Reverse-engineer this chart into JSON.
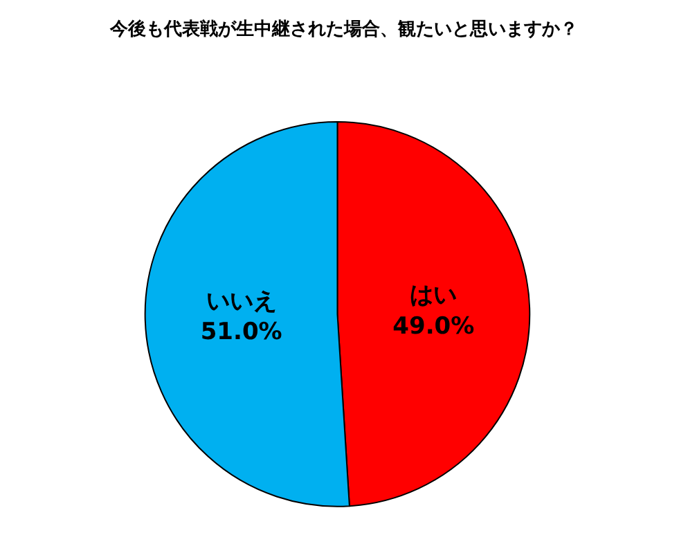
{
  "chart_data": {
    "type": "pie",
    "title": "今後も代表戦が生中継された場合、観たいと思いますか？",
    "categories": [
      "はい",
      "いいえ"
    ],
    "values": [
      49.0,
      51.0
    ],
    "value_labels": [
      "49.0%",
      "51.0%"
    ],
    "colors": [
      "#ff0000",
      "#00b0f0"
    ],
    "legend": false
  }
}
